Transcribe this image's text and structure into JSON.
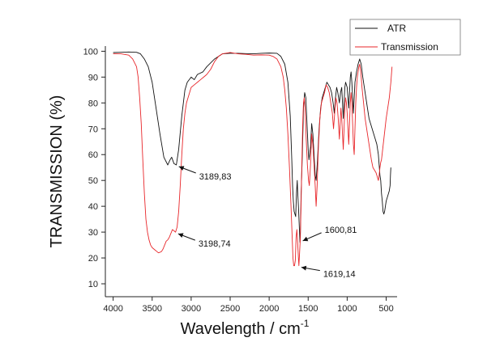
{
  "chart_data": {
    "type": "line",
    "xlabel": "Wavelength / cm",
    "xlabel_sup": "-1",
    "ylabel": "TRANSMISSION (%)",
    "xlim": [
      4100,
      360
    ],
    "ylim": [
      5,
      102
    ],
    "x_ticks": [
      4000,
      3500,
      3000,
      2500,
      2000,
      1500,
      1000,
      500
    ],
    "y_ticks": [
      10,
      20,
      30,
      40,
      50,
      60,
      70,
      80,
      90,
      100
    ],
    "grid": false,
    "legend": "top-right",
    "series": [
      {
        "name": "ATR",
        "color": "#111111",
        "points": [
          [
            4000,
            99.5
          ],
          [
            3900,
            99.6
          ],
          [
            3800,
            99.7
          ],
          [
            3700,
            99.6
          ],
          [
            3650,
            99
          ],
          [
            3600,
            97
          ],
          [
            3550,
            94
          ],
          [
            3500,
            88
          ],
          [
            3450,
            78
          ],
          [
            3400,
            68
          ],
          [
            3350,
            59
          ],
          [
            3300,
            56
          ],
          [
            3270,
            58
          ],
          [
            3250,
            59
          ],
          [
            3220,
            56.5
          ],
          [
            3190,
            56
          ],
          [
            3160,
            62
          ],
          [
            3120,
            75
          ],
          [
            3080,
            85
          ],
          [
            3050,
            88
          ],
          [
            3000,
            90
          ],
          [
            2960,
            89
          ],
          [
            2920,
            91
          ],
          [
            2850,
            92
          ],
          [
            2800,
            94
          ],
          [
            2700,
            97
          ],
          [
            2600,
            99
          ],
          [
            2500,
            99.2
          ],
          [
            2400,
            99.2
          ],
          [
            2300,
            99.1
          ],
          [
            2200,
            99
          ],
          [
            2100,
            99.2
          ],
          [
            2000,
            99.3
          ],
          [
            1900,
            99.2
          ],
          [
            1850,
            98
          ],
          [
            1800,
            95
          ],
          [
            1760,
            88
          ],
          [
            1730,
            75
          ],
          [
            1710,
            58
          ],
          [
            1700,
            48
          ],
          [
            1690,
            42
          ],
          [
            1680,
            38
          ],
          [
            1660,
            36
          ],
          [
            1650,
            45
          ],
          [
            1640,
            50
          ],
          [
            1635,
            46
          ],
          [
            1625,
            40
          ],
          [
            1615,
            33
          ],
          [
            1605,
            26
          ],
          [
            1600,
            30
          ],
          [
            1590,
            45
          ],
          [
            1575,
            60
          ],
          [
            1560,
            78
          ],
          [
            1545,
            84
          ],
          [
            1530,
            82
          ],
          [
            1515,
            72
          ],
          [
            1500,
            62
          ],
          [
            1490,
            58
          ],
          [
            1470,
            63
          ],
          [
            1455,
            72
          ],
          [
            1440,
            68
          ],
          [
            1425,
            60
          ],
          [
            1410,
            52
          ],
          [
            1398,
            50
          ],
          [
            1380,
            58
          ],
          [
            1360,
            70
          ],
          [
            1340,
            78
          ],
          [
            1320,
            82
          ],
          [
            1300,
            84
          ],
          [
            1280,
            86
          ],
          [
            1260,
            88
          ],
          [
            1240,
            87
          ],
          [
            1220,
            86
          ],
          [
            1200,
            84
          ],
          [
            1180,
            80
          ],
          [
            1165,
            76
          ],
          [
            1150,
            82
          ],
          [
            1135,
            86
          ],
          [
            1120,
            84
          ],
          [
            1100,
            80
          ],
          [
            1085,
            84
          ],
          [
            1070,
            86
          ],
          [
            1060,
            80
          ],
          [
            1050,
            74
          ],
          [
            1040,
            80
          ],
          [
            1030,
            86
          ],
          [
            1020,
            88
          ],
          [
            1000,
            86
          ],
          [
            990,
            82
          ],
          [
            980,
            78
          ],
          [
            970,
            84
          ],
          [
            960,
            90
          ],
          [
            950,
            92
          ],
          [
            940,
            88
          ],
          [
            930,
            82
          ],
          [
            920,
            76
          ],
          [
            910,
            82
          ],
          [
            900,
            88
          ],
          [
            880,
            92
          ],
          [
            860,
            95
          ],
          [
            840,
            97
          ],
          [
            820,
            95
          ],
          [
            800,
            90
          ],
          [
            780,
            86
          ],
          [
            760,
            82
          ],
          [
            740,
            78
          ],
          [
            720,
            74
          ],
          [
            700,
            72
          ],
          [
            680,
            70
          ],
          [
            660,
            68
          ],
          [
            640,
            66
          ],
          [
            620,
            64
          ],
          [
            600,
            60
          ],
          [
            590,
            56
          ],
          [
            580,
            52
          ],
          [
            570,
            50
          ],
          [
            560,
            45
          ],
          [
            550,
            42
          ],
          [
            540,
            38
          ],
          [
            530,
            37
          ],
          [
            520,
            38
          ],
          [
            510,
            40
          ],
          [
            500,
            42
          ],
          [
            480,
            44
          ],
          [
            460,
            46
          ],
          [
            450,
            48
          ],
          [
            445,
            52
          ],
          [
            440,
            55
          ]
        ]
      },
      {
        "name": "Transmission",
        "color": "#e8262a",
        "points": [
          [
            4000,
            99
          ],
          [
            3900,
            99
          ],
          [
            3800,
            98.5
          ],
          [
            3750,
            97
          ],
          [
            3700,
            94
          ],
          [
            3680,
            90
          ],
          [
            3660,
            82
          ],
          [
            3640,
            72
          ],
          [
            3620,
            58
          ],
          [
            3600,
            45
          ],
          [
            3580,
            35
          ],
          [
            3560,
            30
          ],
          [
            3540,
            27
          ],
          [
            3520,
            25
          ],
          [
            3500,
            24
          ],
          [
            3480,
            23.5
          ],
          [
            3460,
            23
          ],
          [
            3440,
            22.5
          ],
          [
            3420,
            22
          ],
          [
            3400,
            22.2
          ],
          [
            3380,
            22.5
          ],
          [
            3360,
            23.5
          ],
          [
            3340,
            25
          ],
          [
            3320,
            26.5
          ],
          [
            3300,
            27
          ],
          [
            3280,
            28
          ],
          [
            3260,
            29.5
          ],
          [
            3240,
            31
          ],
          [
            3220,
            30.5
          ],
          [
            3200,
            30
          ],
          [
            3180,
            32
          ],
          [
            3160,
            38
          ],
          [
            3140,
            48
          ],
          [
            3120,
            60
          ],
          [
            3100,
            70
          ],
          [
            3080,
            76
          ],
          [
            3060,
            80
          ],
          [
            3040,
            82
          ],
          [
            3020,
            84
          ],
          [
            3000,
            86
          ],
          [
            2960,
            87
          ],
          [
            2920,
            88
          ],
          [
            2880,
            89
          ],
          [
            2840,
            90
          ],
          [
            2800,
            91
          ],
          [
            2750,
            93
          ],
          [
            2700,
            96
          ],
          [
            2650,
            98
          ],
          [
            2600,
            99
          ],
          [
            2500,
            99.5
          ],
          [
            2400,
            99
          ],
          [
            2300,
            98.8
          ],
          [
            2200,
            98.5
          ],
          [
            2100,
            98.6
          ],
          [
            2000,
            98.5
          ],
          [
            1950,
            98
          ],
          [
            1900,
            97
          ],
          [
            1850,
            94
          ],
          [
            1820,
            90
          ],
          [
            1800,
            85
          ],
          [
            1780,
            78
          ],
          [
            1760,
            68
          ],
          [
            1740,
            55
          ],
          [
            1720,
            40
          ],
          [
            1705,
            28
          ],
          [
            1695,
            20
          ],
          [
            1685,
            17
          ],
          [
            1675,
            17
          ],
          [
            1665,
            19
          ],
          [
            1655,
            28
          ],
          [
            1645,
            31
          ],
          [
            1635,
            26
          ],
          [
            1625,
            20
          ],
          [
            1619,
            17
          ],
          [
            1610,
            22
          ],
          [
            1600,
            28
          ],
          [
            1590,
            42
          ],
          [
            1580,
            58
          ],
          [
            1570,
            72
          ],
          [
            1560,
            80
          ],
          [
            1550,
            82
          ],
          [
            1540,
            78
          ],
          [
            1525,
            66
          ],
          [
            1510,
            56
          ],
          [
            1495,
            50
          ],
          [
            1485,
            48
          ],
          [
            1470,
            56
          ],
          [
            1455,
            68
          ],
          [
            1440,
            64
          ],
          [
            1425,
            56
          ],
          [
            1410,
            48
          ],
          [
            1398,
            40
          ],
          [
            1385,
            48
          ],
          [
            1370,
            62
          ],
          [
            1350,
            74
          ],
          [
            1330,
            80
          ],
          [
            1310,
            82
          ],
          [
            1290,
            84
          ],
          [
            1270,
            87
          ],
          [
            1250,
            86
          ],
          [
            1230,
            84
          ],
          [
            1210,
            80
          ],
          [
            1190,
            76
          ],
          [
            1175,
            70
          ],
          [
            1160,
            76
          ],
          [
            1145,
            82
          ],
          [
            1130,
            80
          ],
          [
            1115,
            74
          ],
          [
            1100,
            66
          ],
          [
            1090,
            72
          ],
          [
            1080,
            78
          ],
          [
            1070,
            74
          ],
          [
            1060,
            68
          ],
          [
            1050,
            62
          ],
          [
            1040,
            70
          ],
          [
            1030,
            78
          ],
          [
            1020,
            82
          ],
          [
            1010,
            80
          ],
          [
            1000,
            76
          ],
          [
            990,
            70
          ],
          [
            980,
            64
          ],
          [
            970,
            72
          ],
          [
            960,
            80
          ],
          [
            950,
            84
          ],
          [
            940,
            80
          ],
          [
            930,
            72
          ],
          [
            920,
            64
          ],
          [
            910,
            60
          ],
          [
            900,
            70
          ],
          [
            890,
            80
          ],
          [
            880,
            86
          ],
          [
            870,
            90
          ],
          [
            860,
            92
          ],
          [
            850,
            94
          ],
          [
            840,
            95
          ],
          [
            825,
            92
          ],
          [
            810,
            86
          ],
          [
            790,
            80
          ],
          [
            770,
            74
          ],
          [
            750,
            70
          ],
          [
            730,
            66
          ],
          [
            710,
            62
          ],
          [
            690,
            58
          ],
          [
            670,
            55
          ],
          [
            650,
            54
          ],
          [
            630,
            53
          ],
          [
            610,
            51
          ],
          [
            600,
            50
          ],
          [
            590,
            52
          ],
          [
            580,
            55
          ],
          [
            570,
            57
          ],
          [
            560,
            58
          ],
          [
            545,
            62
          ],
          [
            530,
            66
          ],
          [
            515,
            70
          ],
          [
            500,
            74
          ],
          [
            480,
            78
          ],
          [
            460,
            82
          ],
          [
            440,
            88
          ],
          [
            430,
            92
          ],
          [
            425,
            94
          ]
        ]
      }
    ],
    "annotations": [
      {
        "label": "3189,83",
        "x": 3189,
        "y": 56
      },
      {
        "label": "3198,74",
        "x": 3198,
        "y": 30
      },
      {
        "label": "1600,81",
        "x": 1600,
        "y": 26
      },
      {
        "label": "1619,14",
        "x": 1619,
        "y": 17
      }
    ]
  }
}
